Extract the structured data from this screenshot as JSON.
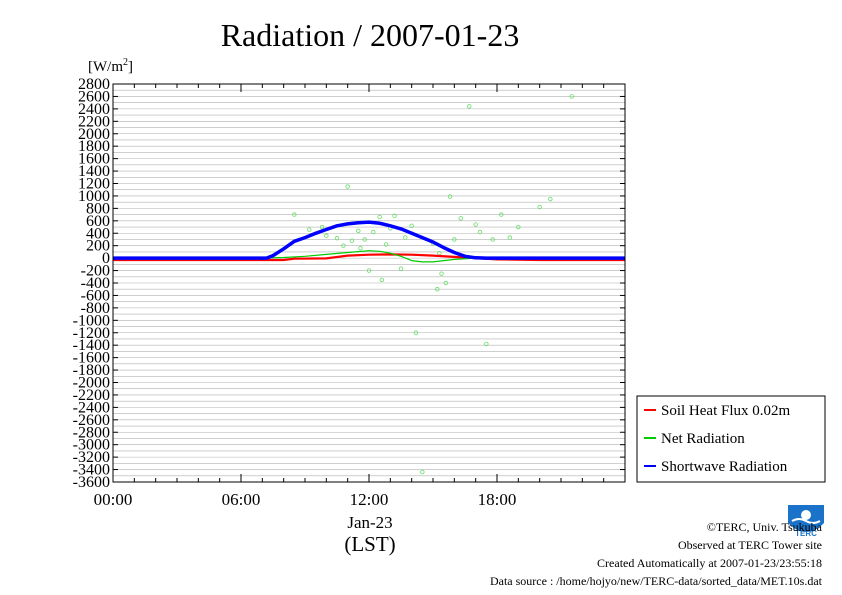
{
  "chart_data": {
    "type": "line",
    "title": "Radiation / 2007-01-23",
    "ylabel_unit": "[W/m",
    "ylabel_sup": "2",
    "ylabel_close": "]",
    "xlabel": "Jan-23",
    "xlabel2": "(LST)",
    "ylim": [
      -3600,
      2800
    ],
    "yticks": [
      2800,
      2600,
      2400,
      2200,
      2000,
      1800,
      1600,
      1400,
      1200,
      1000,
      800,
      600,
      400,
      200,
      0,
      -200,
      -400,
      -600,
      -800,
      -1000,
      -1200,
      -1400,
      -1600,
      -1800,
      -2000,
      -2200,
      -2400,
      -2600,
      -2800,
      -3000,
      -3200,
      -3400,
      -3600
    ],
    "xlim": [
      0,
      24
    ],
    "xticks": [
      {
        "value": 0,
        "label": "00:00"
      },
      {
        "value": 6,
        "label": "06:00"
      },
      {
        "value": 12,
        "label": "12:00"
      },
      {
        "value": 18,
        "label": "18:00"
      }
    ],
    "grid": true,
    "legend_position": "bottom-right",
    "series": [
      {
        "name": "Soil Heat Flux 0.02m",
        "color": "#ff0000",
        "x": [
          0,
          4,
          8,
          8.5,
          10,
          11,
          12,
          13,
          14,
          15,
          16,
          17,
          18,
          20,
          22,
          24
        ],
        "y": [
          -30,
          -30,
          -30,
          -10,
          -5,
          40,
          55,
          60,
          55,
          40,
          20,
          0,
          -20,
          -30,
          -30,
          -30
        ]
      },
      {
        "name": "Net Radiation",
        "color": "#00cc00",
        "x": [
          0,
          7,
          8,
          9,
          10,
          11,
          12,
          12.5,
          13,
          13.5,
          14,
          14.5,
          15,
          16,
          17,
          18,
          20,
          24
        ],
        "y": [
          0,
          0,
          10,
          30,
          60,
          90,
          120,
          110,
          80,
          30,
          -40,
          -60,
          -60,
          -20,
          0,
          10,
          0,
          0
        ],
        "scatter": [
          [
            8.5,
            700
          ],
          [
            9.2,
            460
          ],
          [
            10.0,
            360
          ],
          [
            10.5,
            320
          ],
          [
            11.0,
            1150
          ],
          [
            11.2,
            280
          ],
          [
            11.5,
            440
          ],
          [
            11.8,
            300
          ],
          [
            12.0,
            -200
          ],
          [
            12.2,
            420
          ],
          [
            12.5,
            660
          ],
          [
            12.8,
            220
          ],
          [
            13.0,
            480
          ],
          [
            13.2,
            680
          ],
          [
            13.5,
            -170
          ],
          [
            13.7,
            330
          ],
          [
            14.0,
            520
          ],
          [
            14.2,
            -1200
          ],
          [
            14.5,
            -3440
          ],
          [
            15.0,
            240
          ],
          [
            15.3,
            80
          ],
          [
            15.6,
            -400
          ],
          [
            15.8,
            990
          ],
          [
            16.0,
            300
          ],
          [
            16.3,
            640
          ],
          [
            16.7,
            2440
          ],
          [
            17.0,
            540
          ],
          [
            17.2,
            420
          ],
          [
            17.5,
            -1380
          ],
          [
            17.8,
            300
          ],
          [
            18.2,
            700
          ],
          [
            18.6,
            330
          ],
          [
            19.0,
            500
          ],
          [
            20.0,
            820
          ],
          [
            20.5,
            950
          ],
          [
            21.5,
            2600
          ],
          [
            15.2,
            -500
          ],
          [
            15.4,
            -250
          ],
          [
            12.6,
            -350
          ],
          [
            11.6,
            160
          ],
          [
            10.8,
            200
          ],
          [
            9.8,
            500
          ]
        ]
      },
      {
        "name": "Shortwave Radiation",
        "color": "#0000ff",
        "x": [
          0,
          7.2,
          7.5,
          8,
          8.5,
          9,
          9.5,
          10,
          10.5,
          11,
          11.5,
          12,
          12.5,
          13,
          13.5,
          14,
          14.5,
          15,
          15.5,
          16,
          16.5,
          17,
          17.5,
          18,
          24
        ],
        "y": [
          0,
          0,
          40,
          150,
          270,
          330,
          400,
          460,
          520,
          550,
          570,
          580,
          560,
          520,
          470,
          400,
          330,
          260,
          170,
          90,
          30,
          5,
          0,
          0,
          0
        ]
      }
    ]
  },
  "credits": {
    "copyright": "©TERC, Univ. Tsukuba",
    "observed": "Observed at TERC Tower site",
    "created": "Created Automatically at 2007-01-23/23:55:18",
    "source": "Data source : /home/hojyo/new/TERC-data/sorted_data/MET.10s.dat"
  },
  "logo_text": "TERC"
}
